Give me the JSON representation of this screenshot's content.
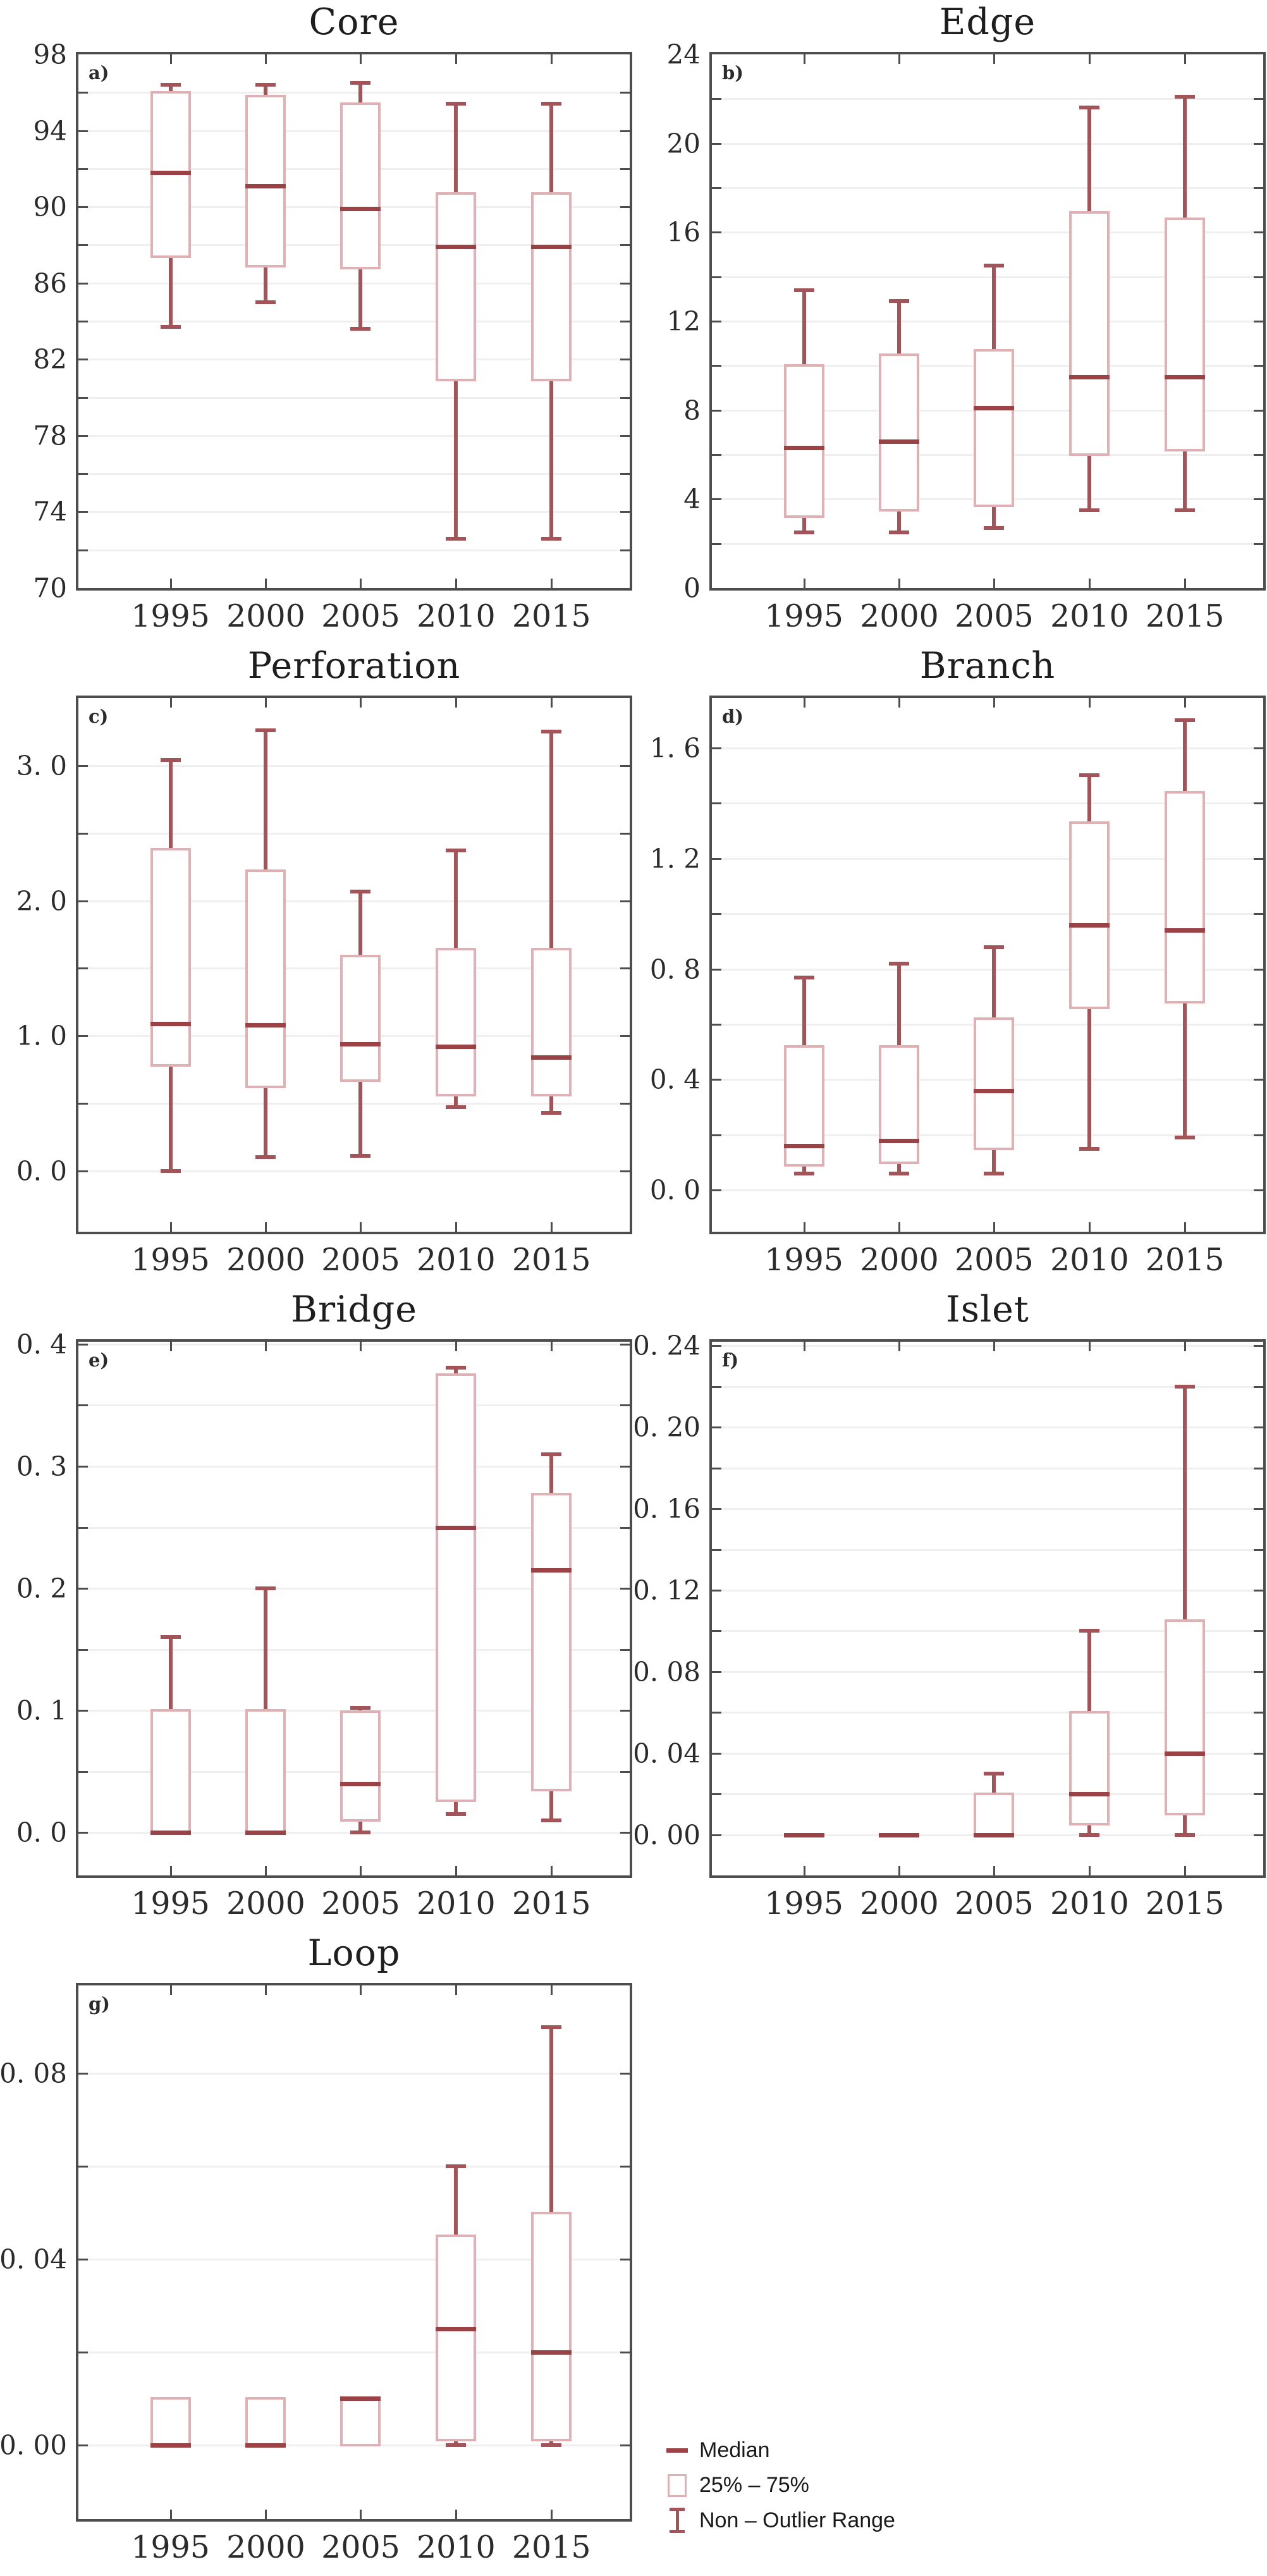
{
  "figure": {
    "background": "#ffffff"
  },
  "categories": [
    "1995",
    "2000",
    "2005",
    "2010",
    "2015"
  ],
  "colors": {
    "median": "#9b4247",
    "whisker": "#a35459",
    "box_outline": "#e0b1b4",
    "axis": "#4d4d4d",
    "gridline": "#f0eeee",
    "title_text": "#1e1e1e",
    "tick_text": "#2b2b2b"
  },
  "legend": {
    "items": [
      {
        "icon": "median-dash",
        "label": "Median"
      },
      {
        "icon": "iqr-box",
        "label": "25% – 75%"
      },
      {
        "icon": "whisker-ibeam",
        "label": "Non – Outlier Range"
      }
    ]
  },
  "chart_data": [
    {
      "type": "boxplot",
      "letter": "a)",
      "title": "Core",
      "ylim": [
        70,
        98
      ],
      "legend_position": "none",
      "grid": "on",
      "yticks": [
        {
          "value": 98,
          "label": "98"
        },
        {
          "value": 94,
          "label": "94"
        },
        {
          "value": 90,
          "label": "90"
        },
        {
          "value": 86,
          "label": "86"
        },
        {
          "value": 82,
          "label": "82"
        },
        {
          "value": 78,
          "label": "78"
        },
        {
          "value": 74,
          "label": "74"
        },
        {
          "value": 70,
          "label": "70"
        }
      ],
      "gridlines": [
        96,
        94,
        92,
        90,
        88,
        86,
        84,
        82,
        80,
        78,
        76,
        74,
        72
      ],
      "boxes": [
        {
          "category": "1995",
          "whisker_low": 83.7,
          "q1": 87.4,
          "median": 91.8,
          "q3": 96.0,
          "whisker_high": 96.4
        },
        {
          "category": "2000",
          "whisker_low": 85.0,
          "q1": 86.9,
          "median": 91.1,
          "q3": 95.8,
          "whisker_high": 96.4
        },
        {
          "category": "2005",
          "whisker_low": 83.6,
          "q1": 86.8,
          "median": 89.9,
          "q3": 95.4,
          "whisker_high": 96.5
        },
        {
          "category": "2010",
          "whisker_low": 72.6,
          "q1": 80.9,
          "median": 87.9,
          "q3": 90.7,
          "whisker_high": 95.4
        },
        {
          "category": "2015",
          "whisker_low": 72.6,
          "q1": 80.9,
          "median": 87.9,
          "q3": 90.7,
          "whisker_high": 95.4
        }
      ]
    },
    {
      "type": "boxplot",
      "letter": "b)",
      "title": "Edge",
      "ylim": [
        0,
        24
      ],
      "legend_position": "none",
      "grid": "on",
      "yticks": [
        {
          "value": 24,
          "label": "24"
        },
        {
          "value": 20,
          "label": "20"
        },
        {
          "value": 16,
          "label": "16"
        },
        {
          "value": 12,
          "label": "12"
        },
        {
          "value": 8,
          "label": "8"
        },
        {
          "value": 4,
          "label": "4"
        },
        {
          "value": 0,
          "label": "0"
        }
      ],
      "gridlines": [
        22,
        20,
        18,
        16,
        14,
        12,
        10,
        8,
        6,
        4,
        2
      ],
      "boxes": [
        {
          "category": "1995",
          "whisker_low": 2.5,
          "q1": 3.2,
          "median": 6.3,
          "q3": 10.0,
          "whisker_high": 13.4
        },
        {
          "category": "2000",
          "whisker_low": 2.5,
          "q1": 3.5,
          "median": 6.6,
          "q3": 10.5,
          "whisker_high": 12.9
        },
        {
          "category": "2005",
          "whisker_low": 2.7,
          "q1": 3.7,
          "median": 8.1,
          "q3": 10.7,
          "whisker_high": 14.5
        },
        {
          "category": "2010",
          "whisker_low": 3.5,
          "q1": 6.0,
          "median": 9.5,
          "q3": 16.9,
          "whisker_high": 21.6
        },
        {
          "category": "2015",
          "whisker_low": 3.5,
          "q1": 6.2,
          "median": 9.5,
          "q3": 16.6,
          "whisker_high": 22.1
        }
      ]
    },
    {
      "type": "boxplot",
      "letter": "c)",
      "title": "Perforation",
      "ylim": [
        -0.45,
        3.5
      ],
      "legend_position": "none",
      "grid": "on",
      "yticks": [
        {
          "value": 3.0,
          "label": "3. 0"
        },
        {
          "value": 2.0,
          "label": "2. 0"
        },
        {
          "value": 1.0,
          "label": "1. 0"
        },
        {
          "value": 0.0,
          "label": "0. 0"
        }
      ],
      "gridlines": [
        3.0,
        2.5,
        2.0,
        1.5,
        1.0,
        0.5,
        0.0
      ],
      "boxes": [
        {
          "category": "1995",
          "whisker_low": 0.0,
          "q1": 0.78,
          "median": 1.09,
          "q3": 2.38,
          "whisker_high": 3.04
        },
        {
          "category": "2000",
          "whisker_low": 0.1,
          "q1": 0.62,
          "median": 1.08,
          "q3": 2.22,
          "whisker_high": 3.26
        },
        {
          "category": "2005",
          "whisker_low": 0.11,
          "q1": 0.67,
          "median": 0.94,
          "q3": 1.59,
          "whisker_high": 2.07
        },
        {
          "category": "2010",
          "whisker_low": 0.47,
          "q1": 0.56,
          "median": 0.92,
          "q3": 1.64,
          "whisker_high": 2.37
        },
        {
          "category": "2015",
          "whisker_low": 0.43,
          "q1": 0.56,
          "median": 0.84,
          "q3": 1.64,
          "whisker_high": 3.25
        }
      ]
    },
    {
      "type": "boxplot",
      "letter": "d)",
      "title": "Branch",
      "ylim": [
        -0.15,
        1.78
      ],
      "legend_position": "none",
      "grid": "on",
      "yticks": [
        {
          "value": 1.6,
          "label": "1. 6"
        },
        {
          "value": 1.2,
          "label": "1. 2"
        },
        {
          "value": 0.8,
          "label": "0. 8"
        },
        {
          "value": 0.4,
          "label": "0. 4"
        },
        {
          "value": 0.0,
          "label": "0. 0"
        }
      ],
      "gridlines": [
        1.6,
        1.4,
        1.2,
        1.0,
        0.8,
        0.6,
        0.4,
        0.2,
        0.0
      ],
      "boxes": [
        {
          "category": "1995",
          "whisker_low": 0.06,
          "q1": 0.09,
          "median": 0.16,
          "q3": 0.52,
          "whisker_high": 0.77
        },
        {
          "category": "2000",
          "whisker_low": 0.06,
          "q1": 0.1,
          "median": 0.18,
          "q3": 0.52,
          "whisker_high": 0.82
        },
        {
          "category": "2005",
          "whisker_low": 0.06,
          "q1": 0.15,
          "median": 0.36,
          "q3": 0.62,
          "whisker_high": 0.88
        },
        {
          "category": "2010",
          "whisker_low": 0.15,
          "q1": 0.66,
          "median": 0.96,
          "q3": 1.33,
          "whisker_high": 1.5
        },
        {
          "category": "2015",
          "whisker_low": 0.19,
          "q1": 0.68,
          "median": 0.94,
          "q3": 1.44,
          "whisker_high": 1.7
        }
      ]
    },
    {
      "type": "boxplot",
      "letter": "e)",
      "title": "Bridge",
      "ylim": [
        -0.035,
        0.402
      ],
      "legend_position": "none",
      "grid": "on",
      "yticks": [
        {
          "value": 0.4,
          "label": "0. 4"
        },
        {
          "value": 0.3,
          "label": "0. 3"
        },
        {
          "value": 0.2,
          "label": "0. 2"
        },
        {
          "value": 0.1,
          "label": "0. 1"
        },
        {
          "value": 0.0,
          "label": "0. 0"
        }
      ],
      "gridlines": [
        0.4,
        0.35,
        0.3,
        0.25,
        0.2,
        0.15,
        0.1,
        0.05,
        0.0
      ],
      "boxes": [
        {
          "category": "1995",
          "whisker_low": 0.0,
          "q1": 0.0,
          "median": 0.0,
          "q3": 0.1,
          "whisker_high": 0.16
        },
        {
          "category": "2000",
          "whisker_low": 0.0,
          "q1": 0.0,
          "median": 0.0,
          "q3": 0.1,
          "whisker_high": 0.2
        },
        {
          "category": "2005",
          "whisker_low": 0.0,
          "q1": 0.01,
          "median": 0.04,
          "q3": 0.099,
          "whisker_high": 0.102
        },
        {
          "category": "2010",
          "whisker_low": 0.015,
          "q1": 0.026,
          "median": 0.25,
          "q3": 0.375,
          "whisker_high": 0.381
        },
        {
          "category": "2015",
          "whisker_low": 0.01,
          "q1": 0.035,
          "median": 0.215,
          "q3": 0.277,
          "whisker_high": 0.31
        }
      ]
    },
    {
      "type": "boxplot",
      "letter": "f)",
      "title": "Islet",
      "ylim": [
        -0.02,
        0.242
      ],
      "legend_position": "none",
      "grid": "on",
      "yticks": [
        {
          "value": 0.24,
          "label": "0. 24"
        },
        {
          "value": 0.2,
          "label": "0. 20"
        },
        {
          "value": 0.16,
          "label": "0. 16"
        },
        {
          "value": 0.12,
          "label": "0. 12"
        },
        {
          "value": 0.08,
          "label": "0. 08"
        },
        {
          "value": 0.04,
          "label": "0. 04"
        },
        {
          "value": 0.0,
          "label": "0. 00"
        }
      ],
      "gridlines": [
        0.24,
        0.22,
        0.2,
        0.18,
        0.16,
        0.14,
        0.12,
        0.1,
        0.08,
        0.06,
        0.04,
        0.02,
        0.0
      ],
      "boxes": [
        {
          "category": "1995",
          "whisker_low": 0.0,
          "q1": 0.0,
          "median": 0.0,
          "q3": 0.0,
          "whisker_high": 0.0
        },
        {
          "category": "2000",
          "whisker_low": 0.0,
          "q1": 0.0,
          "median": 0.0,
          "q3": 0.0,
          "whisker_high": 0.0
        },
        {
          "category": "2005",
          "whisker_low": 0.0,
          "q1": 0.0,
          "median": 0.0,
          "q3": 0.02,
          "whisker_high": 0.03
        },
        {
          "category": "2010",
          "whisker_low": 0.0,
          "q1": 0.005,
          "median": 0.02,
          "q3": 0.06,
          "whisker_high": 0.1
        },
        {
          "category": "2015",
          "whisker_low": 0.0,
          "q1": 0.01,
          "median": 0.04,
          "q3": 0.105,
          "whisker_high": 0.22
        }
      ]
    },
    {
      "type": "boxplot",
      "letter": "g)",
      "title": "Loop",
      "ylim": [
        -0.016,
        0.099
      ],
      "legend_position": "right-bottom",
      "grid": "on",
      "yticks": [
        {
          "value": 0.08,
          "label": "0. 08"
        },
        {
          "value": 0.04,
          "label": "0. 04"
        },
        {
          "value": 0.0,
          "label": "0. 00"
        }
      ],
      "gridlines": [
        0.08,
        0.06,
        0.04,
        0.02,
        0.0
      ],
      "boxes": [
        {
          "category": "1995",
          "whisker_low": 0.0,
          "q1": 0.0,
          "median": 0.0,
          "q3": 0.01,
          "whisker_high": 0.01
        },
        {
          "category": "2000",
          "whisker_low": 0.0,
          "q1": 0.0,
          "median": 0.0,
          "q3": 0.01,
          "whisker_high": 0.01
        },
        {
          "category": "2005",
          "whisker_low": 0.0,
          "q1": 0.0,
          "median": 0.01,
          "q3": 0.01,
          "whisker_high": 0.01
        },
        {
          "category": "2010",
          "whisker_low": 0.0,
          "q1": 0.001,
          "median": 0.025,
          "q3": 0.045,
          "whisker_high": 0.06
        },
        {
          "category": "2015",
          "whisker_low": 0.0,
          "q1": 0.001,
          "median": 0.02,
          "q3": 0.05,
          "whisker_high": 0.09
        }
      ]
    }
  ]
}
